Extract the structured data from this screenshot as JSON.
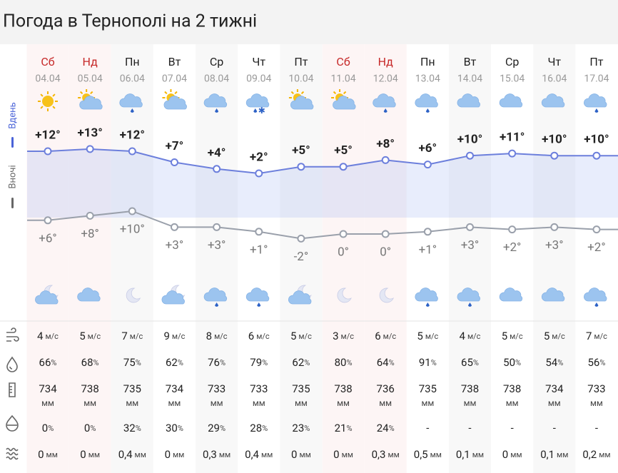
{
  "header": {
    "title": "Погода в Тернополі на 2 тижні"
  },
  "weekdays": [
    "Сб",
    "Нд",
    "Пн",
    "Вт",
    "Ср",
    "Чт",
    "Пт",
    "Сб",
    "Нд",
    "Пн",
    "Вт",
    "Ср",
    "Чт",
    "Пт"
  ],
  "weekend": [
    true,
    true,
    false,
    false,
    false,
    false,
    false,
    true,
    true,
    false,
    false,
    false,
    false,
    false
  ],
  "weekend_color": "#c62828",
  "chart_data": {
    "type": "line",
    "categories": [
      "04.04",
      "05.04",
      "06.04",
      "07.04",
      "08.04",
      "09.04",
      "10.04",
      "11.04",
      "12.04",
      "13.04",
      "14.04",
      "15.04",
      "16.04",
      "17.04"
    ],
    "series": [
      {
        "name": "Вдень",
        "color": "#6c7fdc",
        "values": [
          12,
          13,
          12,
          7,
          4,
          2,
          5,
          5,
          8,
          6,
          10,
          11,
          10,
          10
        ],
        "value_labels": [
          "+12°",
          "+13°",
          "+12°",
          "+7°",
          "+4°",
          "+2°",
          "+5°",
          "+5°",
          "+8°",
          "+6°",
          "+10°",
          "+11°",
          "+10°",
          "+10°"
        ],
        "icons": [
          "sun",
          "sun-cloud",
          "cloud-rain",
          "sun-cloud",
          "cloud-rain",
          "cloud-snow",
          "sun-cloud",
          "sun-cloud",
          "cloud-rain",
          "cloud-rain",
          "cloud",
          "cloud",
          "cloud",
          "cloud-rain"
        ]
      },
      {
        "name": "Вночі",
        "color": "#9aa0ab",
        "values": [
          6,
          8,
          10,
          3,
          3,
          1,
          -2,
          0,
          0,
          1,
          3,
          2,
          3,
          2
        ],
        "value_labels": [
          "+6°",
          "+8°",
          "+10°",
          "+3°",
          "+3°",
          "+1°",
          "-2°",
          "0°",
          "0°",
          "+1°",
          "+3°",
          "+2°",
          "+3°",
          "+2°"
        ],
        "icons": [
          "moon-cloud",
          "cloud",
          "moon",
          "moon-cloud",
          "cloud-rain",
          "cloud-rain",
          "moon-cloud",
          "moon",
          "moon",
          "cloud-rain",
          "cloud-rain",
          "cloud",
          "cloud",
          "cloud-rain"
        ]
      }
    ]
  },
  "details": {
    "wind": {
      "unit": "м/с",
      "values": [
        4,
        5,
        7,
        9,
        8,
        6,
        5,
        3,
        6,
        5,
        4,
        5,
        5,
        7
      ]
    },
    "humidity": {
      "unit": "%",
      "values": [
        66,
        68,
        75,
        62,
        76,
        79,
        62,
        80,
        64,
        91,
        65,
        50,
        54,
        56
      ]
    },
    "pressure": {
      "unit": "мм",
      "values": [
        734,
        738,
        735,
        734,
        733,
        733,
        735,
        738,
        736,
        735,
        738,
        738,
        734,
        733
      ]
    },
    "precip_probability": {
      "unit": "%",
      "values": [
        0,
        0,
        32,
        30,
        29,
        28,
        23,
        21,
        24,
        "-",
        "-",
        "-",
        "-",
        "-"
      ]
    },
    "precipitation": {
      "unit": "мм",
      "values": [
        "0",
        "0",
        "0,4",
        "0",
        "0,3",
        "0,4",
        "0",
        "0",
        "0,3",
        "0,5",
        "0,1",
        "0",
        "0,1",
        "0,2"
      ]
    }
  }
}
